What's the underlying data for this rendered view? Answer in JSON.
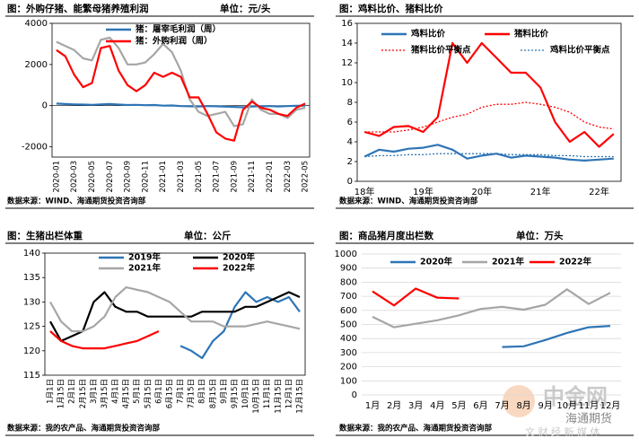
{
  "chart_data": [
    {
      "type": "line",
      "title": "图：外购仔猪、能繁母猪养殖利润",
      "unit": "单位：元/头",
      "source": "数据来源：WIND、海通期货投资咨询部",
      "categories": [
        "2020-01",
        null,
        "2020-03",
        null,
        "2020-05",
        null,
        "2020-07",
        null,
        "2020-09",
        null,
        "2020-11",
        null,
        "2021-01",
        null,
        "2021-03",
        null,
        "2021-05",
        null,
        "2021-07",
        null,
        "2021-09",
        null,
        "2021-11",
        null,
        "2022-01",
        null,
        "2022-03",
        null,
        "2022-05"
      ],
      "ylim": [
        -2500,
        4000
      ],
      "yticks": [
        -2000,
        0,
        2000,
        4000
      ],
      "frame": true,
      "grid": false,
      "series": [
        {
          "name": "猪：屠宰毛利润（周）",
          "color": "#2e75b6",
          "values": [
            100,
            80,
            60,
            50,
            40,
            60,
            80,
            50,
            30,
            40,
            20,
            30,
            0,
            10,
            -20,
            -30,
            -40,
            -20,
            -30,
            -50,
            -60,
            -80,
            -40,
            -30,
            -20,
            -40,
            -20,
            -10,
            0
          ]
        },
        {
          "color": "#a6a6a6",
          "values": [
            3100,
            2900,
            2700,
            2300,
            2200,
            3200,
            3300,
            2800,
            2000,
            2000,
            2100,
            2500,
            3000,
            2600,
            1700,
            300,
            -300,
            -500,
            -400,
            -300,
            -1000,
            -900,
            300,
            -200,
            -400,
            -400,
            -600,
            -200,
            -100
          ]
        },
        {
          "name": "猪：外购利润（周）",
          "color": "#ff0000",
          "values": [
            2700,
            2400,
            1500,
            900,
            1100,
            2800,
            2900,
            1700,
            1000,
            700,
            1000,
            1600,
            1400,
            1600,
            1400,
            400,
            400,
            -400,
            -1300,
            -1600,
            -1700,
            -200,
            200,
            -100,
            -200,
            -400,
            -500,
            -100,
            100
          ]
        }
      ]
    },
    {
      "type": "line",
      "title": "图：鸡料比价、猪料比价",
      "source": "数据来源：WIND、海通期货投资咨询部",
      "categories": [
        "18年",
        null,
        null,
        null,
        "19年",
        null,
        null,
        null,
        "20年",
        null,
        null,
        null,
        "21年",
        null,
        null,
        null,
        "22年",
        null
      ],
      "ylim": [
        0,
        16
      ],
      "yticks": [
        0,
        2,
        4,
        6,
        8,
        10,
        12,
        14,
        16
      ],
      "frame": true,
      "grid": false,
      "series": [
        {
          "name": "鸡料比价",
          "color": "#2e75b6",
          "values": [
            2.5,
            3.2,
            3.0,
            3.3,
            3.4,
            3.7,
            3.2,
            2.3,
            2.6,
            2.8,
            2.4,
            2.6,
            2.5,
            2.4,
            2.2,
            2.1,
            2.2,
            2.3
          ]
        },
        {
          "name": "猪料比价",
          "color": "#ff0000",
          "values": [
            5.0,
            4.6,
            5.5,
            5.6,
            5.0,
            6.5,
            14.0,
            12.0,
            14.0,
            12.5,
            11.0,
            11.0,
            9.5,
            6.0,
            4.0,
            5.0,
            3.5,
            4.8
          ]
        },
        {
          "name": "猪料比价平衡点",
          "color": "#ff0000",
          "dash": true,
          "values": [
            5.0,
            5.0,
            5.0,
            5.2,
            5.5,
            6.0,
            6.5,
            6.8,
            7.5,
            7.8,
            7.8,
            8.0,
            7.8,
            7.5,
            7.0,
            6.0,
            5.5,
            5.3
          ]
        },
        {
          "name": "鸡料比价平衡点",
          "color": "#2e75b6",
          "dash": true,
          "values": [
            2.5,
            2.6,
            2.6,
            2.7,
            2.7,
            2.8,
            2.8,
            2.8,
            2.8,
            2.8,
            2.7,
            2.7,
            2.7,
            2.6,
            2.6,
            2.5,
            2.5,
            2.5
          ]
        }
      ]
    },
    {
      "type": "line",
      "title": "图：生猪出栏体重",
      "unit": "单位：公斤",
      "source": "数据来源：我的农产品、海通期货投资咨询部",
      "categories": [
        "1月1日",
        "1月15日",
        "2月1日",
        "2月15日",
        "3月1日",
        "3月15日",
        "4月1日",
        "4月15日",
        "5月1日",
        "5月15日",
        "6月1日",
        "6月15日",
        "7月1日",
        "7月15日",
        "8月1日",
        "8月15日",
        "9月1日",
        "9月15日",
        "10月1日",
        "10月15日",
        "11月1日",
        "11月15日",
        "12月1日",
        "12月15日"
      ],
      "ylim": [
        115,
        140
      ],
      "yticks": [
        115,
        120,
        125,
        130,
        135,
        140
      ],
      "frame": true,
      "grid": false,
      "series": [
        {
          "name": "2019年",
          "color": "#2e75b6",
          "values": [
            null,
            null,
            null,
            null,
            null,
            null,
            null,
            null,
            null,
            null,
            null,
            null,
            121,
            120,
            118.5,
            122,
            124,
            129,
            132,
            130,
            131,
            130,
            131,
            128
          ]
        },
        {
          "name": "2020年",
          "color": "#000000",
          "values": [
            126,
            122,
            123,
            124,
            130,
            132,
            129,
            128,
            128,
            127,
            127,
            127,
            127,
            127,
            128,
            128,
            128,
            128,
            129,
            129,
            130,
            131,
            132,
            131
          ]
        },
        {
          "name": "2021年",
          "color": "#a6a6a6",
          "values": [
            130,
            126,
            124,
            124,
            125,
            127,
            131,
            133,
            132.5,
            132,
            131,
            130,
            128,
            126,
            126,
            126,
            125,
            125,
            125,
            125.5,
            126,
            125.5,
            125,
            124.5
          ]
        },
        {
          "name": "2022年",
          "color": "#ff0000",
          "values": [
            124,
            122,
            121,
            120.5,
            120.5,
            120.5,
            121,
            121.5,
            122,
            123,
            124,
            null,
            null,
            null,
            null,
            null,
            null,
            null,
            null,
            null,
            null,
            null,
            null,
            null
          ]
        }
      ]
    },
    {
      "type": "line",
      "title": "图：商品猪月度出栏数",
      "unit": "单位：万头",
      "source": "数据来源：我的农产品、海通期货投资咨询部",
      "categories": [
        "1月",
        "2月",
        "3月",
        "4月",
        "5月",
        "6月",
        "7月",
        "8月",
        "9月",
        "10月",
        "11月",
        "12月"
      ],
      "ylim": [
        0,
        1000
      ],
      "yticks": [
        0,
        100,
        200,
        300,
        400,
        500,
        600,
        700,
        800,
        900,
        1000
      ],
      "frame": false,
      "grid": true,
      "series": [
        {
          "name": "2020年",
          "color": "#2e75b6",
          "values": [
            null,
            null,
            null,
            null,
            null,
            null,
            340,
            345,
            390,
            440,
            480,
            490
          ]
        },
        {
          "name": "2021年",
          "color": "#a6a6a6",
          "values": [
            555,
            480,
            505,
            530,
            565,
            610,
            625,
            605,
            640,
            750,
            645,
            725
          ]
        },
        {
          "name": "2022年",
          "color": "#ff0000",
          "values": [
            735,
            635,
            755,
            690,
            685,
            null,
            null,
            null,
            null,
            null,
            null,
            null
          ]
        }
      ]
    }
  ],
  "watermark": {
    "logo": "中金网",
    "account": "海通期货",
    "tagline": "文 财 经 新 媒 体"
  }
}
